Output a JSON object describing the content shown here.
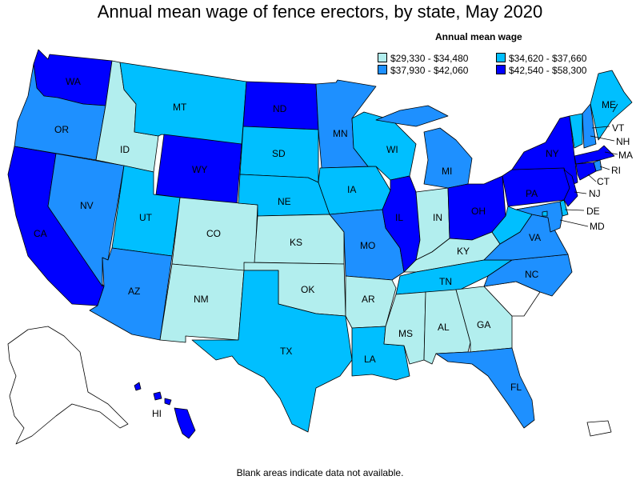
{
  "title": "Annual mean wage of fence erectors, by state, May 2020",
  "legend": {
    "title": "Annual mean wage",
    "items": [
      {
        "label": "$29,330 - $34,480",
        "color": "#b2eeee"
      },
      {
        "label": "$34,620 - $37,660",
        "color": "#00bfff"
      },
      {
        "label": "$37,930 - $42,060",
        "color": "#1e90ff"
      },
      {
        "label": "$42,540 - $58,300",
        "color": "#0000ff"
      }
    ]
  },
  "footnote": "Blank areas indicate data not available.",
  "colors": {
    "c1": "#b2eeee",
    "c2": "#00bfff",
    "c3": "#1e90ff",
    "c4": "#0000ff",
    "blank": "#ffffff"
  },
  "states": {
    "WA": {
      "label": "WA",
      "bin": "c4"
    },
    "OR": {
      "label": "OR",
      "bin": "c3"
    },
    "CA": {
      "label": "CA",
      "bin": "c4"
    },
    "ID": {
      "label": "ID",
      "bin": "c1"
    },
    "NV": {
      "label": "NV",
      "bin": "c3"
    },
    "MT": {
      "label": "MT",
      "bin": "c2"
    },
    "WY": {
      "label": "WY",
      "bin": "c4"
    },
    "UT": {
      "label": "UT",
      "bin": "c2"
    },
    "AZ": {
      "label": "AZ",
      "bin": "c3"
    },
    "CO": {
      "label": "CO",
      "bin": "c1"
    },
    "NM": {
      "label": "NM",
      "bin": "c1"
    },
    "ND": {
      "label": "ND",
      "bin": "c4"
    },
    "SD": {
      "label": "SD",
      "bin": "c2"
    },
    "NE": {
      "label": "NE",
      "bin": "c2"
    },
    "KS": {
      "label": "KS",
      "bin": "c1"
    },
    "OK": {
      "label": "OK",
      "bin": "c1"
    },
    "TX": {
      "label": "TX",
      "bin": "c2"
    },
    "MN": {
      "label": "MN",
      "bin": "c3"
    },
    "IA": {
      "label": "IA",
      "bin": "c2"
    },
    "MO": {
      "label": "MO",
      "bin": "c3"
    },
    "AR": {
      "label": "AR",
      "bin": "c1"
    },
    "LA": {
      "label": "LA",
      "bin": "c2"
    },
    "WI": {
      "label": "WI",
      "bin": "c2"
    },
    "IL": {
      "label": "IL",
      "bin": "c4"
    },
    "MI": {
      "label": "MI",
      "bin": "c3"
    },
    "IN": {
      "label": "IN",
      "bin": "c1"
    },
    "OH": {
      "label": "OH",
      "bin": "c4"
    },
    "KY": {
      "label": "KY",
      "bin": "c1"
    },
    "TN": {
      "label": "TN",
      "bin": "c2"
    },
    "MS": {
      "label": "MS",
      "bin": "c1"
    },
    "AL": {
      "label": "AL",
      "bin": "c1"
    },
    "GA": {
      "label": "GA",
      "bin": "c1"
    },
    "FL": {
      "label": "FL",
      "bin": "c3"
    },
    "SC": {
      "label": "",
      "bin": "blank"
    },
    "NC": {
      "label": "NC",
      "bin": "c3"
    },
    "VA": {
      "label": "VA",
      "bin": "c3"
    },
    "WV": {
      "label": "",
      "bin": "c2"
    },
    "PA": {
      "label": "PA",
      "bin": "c4"
    },
    "NY": {
      "label": "NY",
      "bin": "c4"
    },
    "VT": {
      "label": "VT",
      "bin": "c2"
    },
    "NH": {
      "label": "NH",
      "bin": "c3"
    },
    "ME": {
      "label": "ME",
      "bin": "c2"
    },
    "MA": {
      "label": "MA",
      "bin": "c4"
    },
    "RI": {
      "label": "RI",
      "bin": "c3"
    },
    "CT": {
      "label": "CT",
      "bin": "c4"
    },
    "NJ": {
      "label": "NJ",
      "bin": "c4"
    },
    "DE": {
      "label": "DE",
      "bin": "c2"
    },
    "MD": {
      "label": "MD",
      "bin": "c3"
    },
    "DC": {
      "label": "",
      "bin": "c2"
    },
    "AK": {
      "label": "",
      "bin": "blank"
    },
    "HI": {
      "label": "HI",
      "bin": "c4"
    },
    "PR": {
      "label": "",
      "bin": "blank"
    }
  }
}
